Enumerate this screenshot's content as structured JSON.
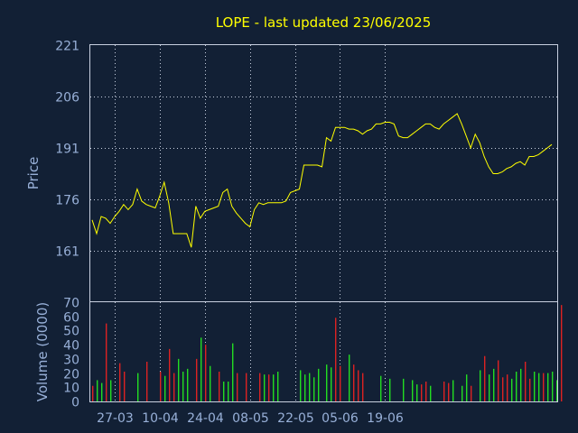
{
  "chart_data": [
    {
      "type": "line",
      "title": "LOPE - last updated 23/06/2025",
      "ylabel": "Price",
      "ylim": [
        146,
        221
      ],
      "yticks": [
        "221",
        "206",
        "191",
        "176",
        "161"
      ],
      "x_tick_labels": [
        "27-03",
        "10-04",
        "24-04",
        "08-05",
        "22-05",
        "05-06",
        "19-06"
      ],
      "grid": true,
      "series": [
        {
          "color": "#ffff00",
          "values": [
            170,
            166,
            171,
            170.5,
            169,
            171,
            172.5,
            174.5,
            173,
            174.5,
            179,
            175.5,
            174.5,
            174,
            173.5,
            177,
            181,
            175,
            166,
            166,
            166,
            166,
            162,
            174,
            170.5,
            172.5,
            173,
            173.5,
            174,
            178,
            179,
            174,
            172,
            170.5,
            169,
            168,
            173,
            175,
            174.5,
            175,
            175,
            175,
            175,
            175.5,
            178,
            178.5,
            179,
            186,
            186,
            186,
            186,
            185.5,
            194,
            193,
            197,
            197,
            197,
            196.5,
            196.5,
            196,
            195,
            196,
            196.5,
            198,
            198,
            198.5,
            198.5,
            198,
            194.5,
            194,
            194,
            195,
            196,
            197,
            198,
            198,
            197,
            196.5,
            198,
            199,
            200,
            201,
            198,
            194.5,
            191,
            195,
            192.5,
            188.5,
            185.5,
            183.5,
            183.5,
            184,
            185,
            185.5,
            186.5,
            187,
            186,
            188.5,
            188.5,
            189,
            190,
            191,
            192
          ]
        }
      ]
    },
    {
      "type": "bar",
      "ylabel": "Volume (0000)",
      "ylim": [
        0,
        70
      ],
      "yticks": [
        "70",
        "60",
        "50",
        "40",
        "30",
        "20",
        "10",
        "0"
      ],
      "series": [
        {
          "name": "up",
          "color": "#22dd22",
          "points": [
            [
              1,
              15
            ],
            [
              2,
              13
            ],
            [
              4,
              15
            ],
            [
              10,
              20
            ],
            [
              16,
              18
            ],
            [
              19,
              30
            ],
            [
              20,
              21
            ],
            [
              21,
              23
            ],
            [
              24,
              45
            ],
            [
              26,
              25
            ],
            [
              29,
              14
            ],
            [
              30,
              14
            ],
            [
              31,
              41
            ],
            [
              38,
              19
            ],
            [
              40,
              19
            ],
            [
              41,
              21
            ],
            [
              46,
              22
            ],
            [
              47,
              19
            ],
            [
              48,
              20
            ],
            [
              49,
              17
            ],
            [
              50,
              23
            ],
            [
              52,
              26
            ],
            [
              53,
              24
            ],
            [
              57,
              33
            ],
            [
              64,
              18
            ],
            [
              66,
              16
            ],
            [
              69,
              16
            ],
            [
              71,
              15
            ],
            [
              72,
              12
            ],
            [
              75,
              11
            ],
            [
              80,
              15
            ],
            [
              82,
              11
            ],
            [
              83,
              19
            ],
            [
              86,
              22
            ],
            [
              88,
              19
            ],
            [
              89,
              23
            ],
            [
              93,
              16
            ],
            [
              94,
              21
            ],
            [
              95,
              23
            ],
            [
              98,
              21
            ],
            [
              99,
              20
            ],
            [
              101,
              20
            ],
            [
              102,
              21
            ],
            [
              103,
              15
            ]
          ]
        },
        {
          "name": "down",
          "color": "#dd2222",
          "points": [
            [
              0,
              11
            ],
            [
              3,
              55
            ],
            [
              6,
              27
            ],
            [
              7,
              21
            ],
            [
              12,
              28
            ],
            [
              15,
              21
            ],
            [
              17,
              37
            ],
            [
              18,
              20
            ],
            [
              23,
              30
            ],
            [
              25,
              40
            ],
            [
              28,
              21
            ],
            [
              32,
              20
            ],
            [
              34,
              20
            ],
            [
              37,
              20
            ],
            [
              39,
              19
            ],
            [
              54,
              59
            ],
            [
              55,
              25
            ],
            [
              58,
              26
            ],
            [
              59,
              22
            ],
            [
              60,
              20
            ],
            [
              73,
              12
            ],
            [
              74,
              14
            ],
            [
              78,
              14
            ],
            [
              79,
              13
            ],
            [
              84,
              11
            ],
            [
              87,
              32
            ],
            [
              90,
              29
            ],
            [
              91,
              17
            ],
            [
              92,
              19
            ],
            [
              96,
              28
            ],
            [
              97,
              16
            ],
            [
              100,
              20
            ],
            [
              104,
              68
            ]
          ]
        }
      ]
    }
  ]
}
